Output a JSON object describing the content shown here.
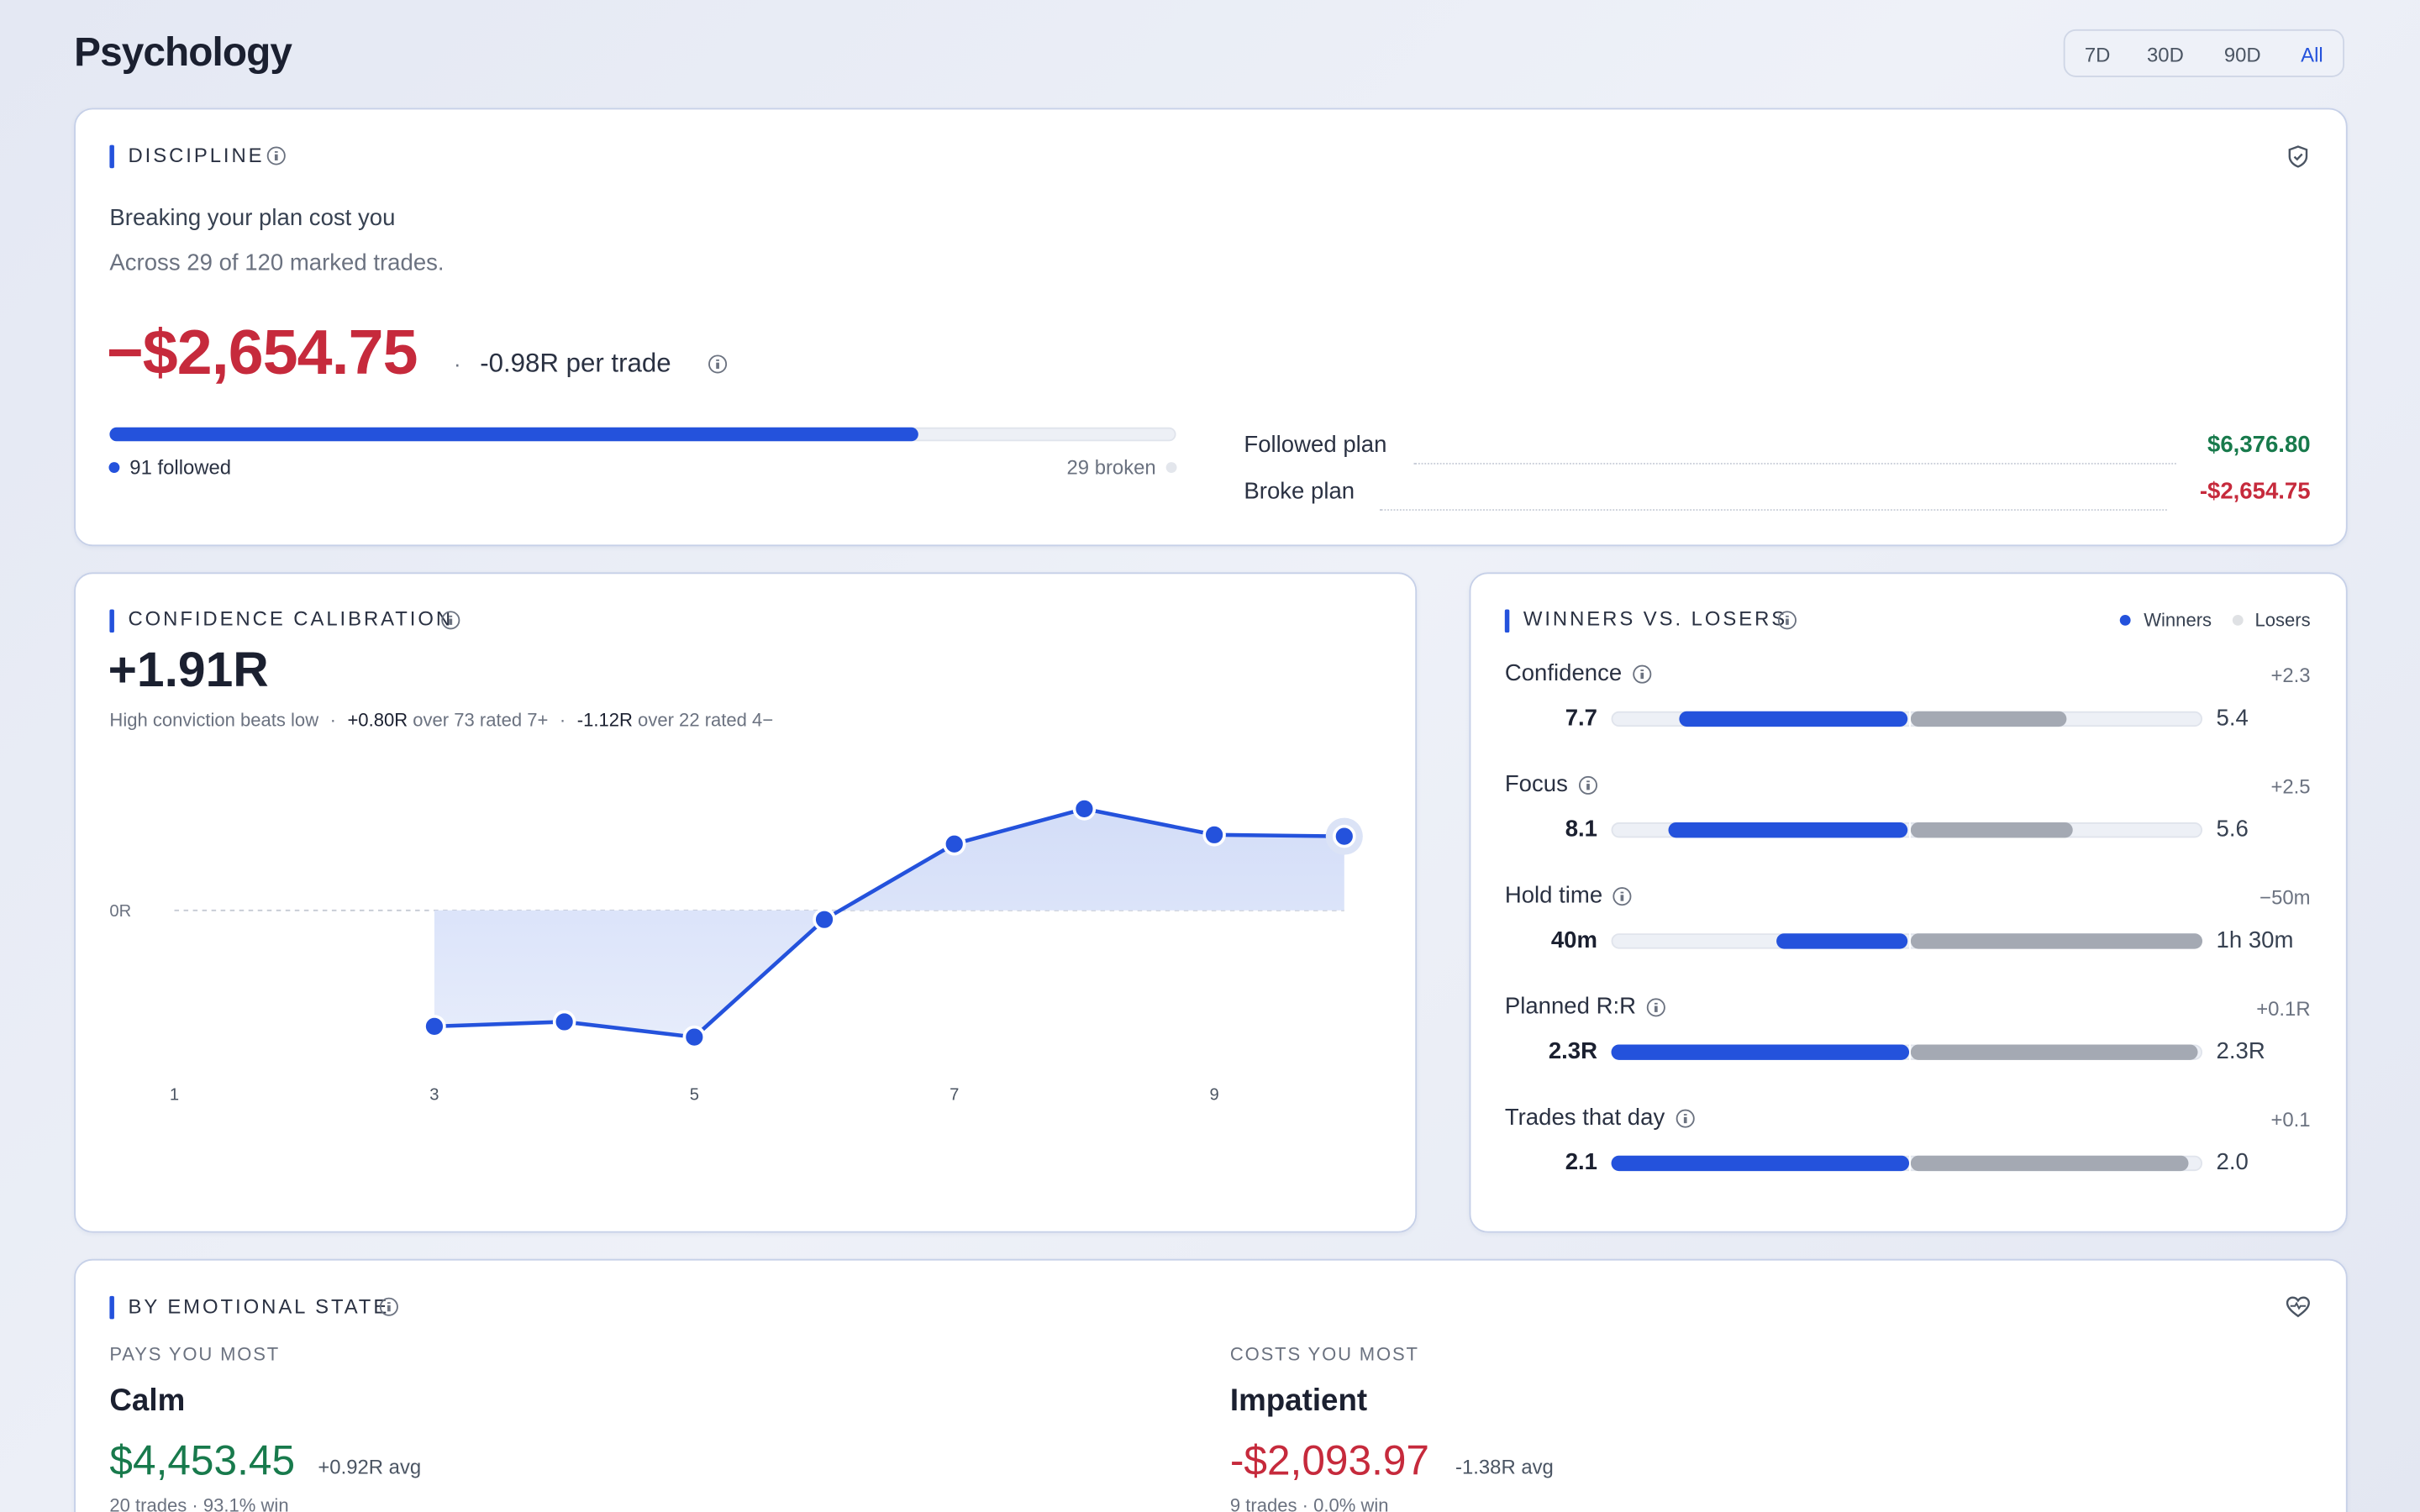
{
  "header": {
    "title": "Psychology",
    "ranges": [
      "7D",
      "30D",
      "90D",
      "All"
    ]
  },
  "discipline": {
    "title": "DISCIPLINE",
    "headline": "Breaking your plan cost you",
    "detail": "Across 29 of 120 marked trades.",
    "amount": "−$2,654.75",
    "per_trade": "-0.98R per trade",
    "progress": {
      "followed": 91,
      "broken": 29,
      "followed_label": "91 followed",
      "broken_label": "29 broken",
      "color": "#2452dc"
    },
    "rows": [
      {
        "label": "Followed plan",
        "value": "$6,376.80"
      },
      {
        "label": "Broke plan",
        "value": "-$2,654.75"
      }
    ]
  },
  "calibration": {
    "title": "CONFIDENCE CALIBRATION",
    "value": "+1.91R",
    "subtitle": "High conviction beats low",
    "high": {
      "value": "+0.80R",
      "label": "over 73 rated 7+"
    },
    "low": {
      "value": "-1.12R",
      "label": "over 22 rated 4−"
    }
  },
  "chart_data": {
    "type": "line",
    "x": [
      3,
      4,
      5,
      6,
      7,
      8,
      9,
      10
    ],
    "values": [
      -1.52,
      -1.46,
      -1.66,
      -0.12,
      0.87,
      1.33,
      0.99,
      0.97
    ],
    "color": "#2452dc",
    "xlim": [
      1,
      10
    ],
    "xticks": [
      1,
      3,
      5,
      7,
      9
    ],
    "ylim": [
      -2,
      1.8
    ],
    "yticks": [
      {
        "value": 0,
        "label": "0R"
      }
    ]
  },
  "winners_losers": {
    "title": "WINNERS VS. LOSERS",
    "legend": [
      "Winners",
      "Losers"
    ],
    "colors": [
      "#2452dc",
      "#a4a9b3"
    ],
    "rows": [
      {
        "label": "Confidence",
        "delta": "+2.3",
        "winner": 7.7,
        "loser": 5.4,
        "xlim": [
          0,
          10
        ]
      },
      {
        "label": "Focus",
        "delta": "+2.5",
        "winner": 8.1,
        "loser": 5.6,
        "xlim": [
          0,
          10
        ]
      },
      {
        "label": "Hold time",
        "delta": "−50m",
        "winner": 40,
        "loser": 90,
        "winner_label": "40m",
        "loser_label": "1h 30m",
        "xlim": [
          0,
          90
        ]
      },
      {
        "label": "Planned R:R",
        "delta": "+0.1R",
        "winner": 2.3,
        "loser": 2.26,
        "winner_label": "2.3R",
        "loser_label": "2.3R",
        "xlim": [
          0,
          2.3
        ]
      },
      {
        "label": "Trades that day",
        "delta": "+0.1",
        "winner": 2.1,
        "loser": 2.0,
        "loser_label": "2.0",
        "xlim": [
          0,
          2.1
        ]
      }
    ]
  },
  "emotional": {
    "title": "BY EMOTIONAL STATE",
    "best": {
      "heading": "PAYS YOU MOST",
      "name": "Calm",
      "amount": "$4,453.45",
      "avg": "+0.92R avg",
      "meta": "20 trades · 93.1% win"
    },
    "worst": {
      "heading": "COSTS YOU MOST",
      "name": "Impatient",
      "amount": "-$2,093.97",
      "avg": "-1.38R avg",
      "meta": "9 trades · 0.0% win"
    }
  }
}
